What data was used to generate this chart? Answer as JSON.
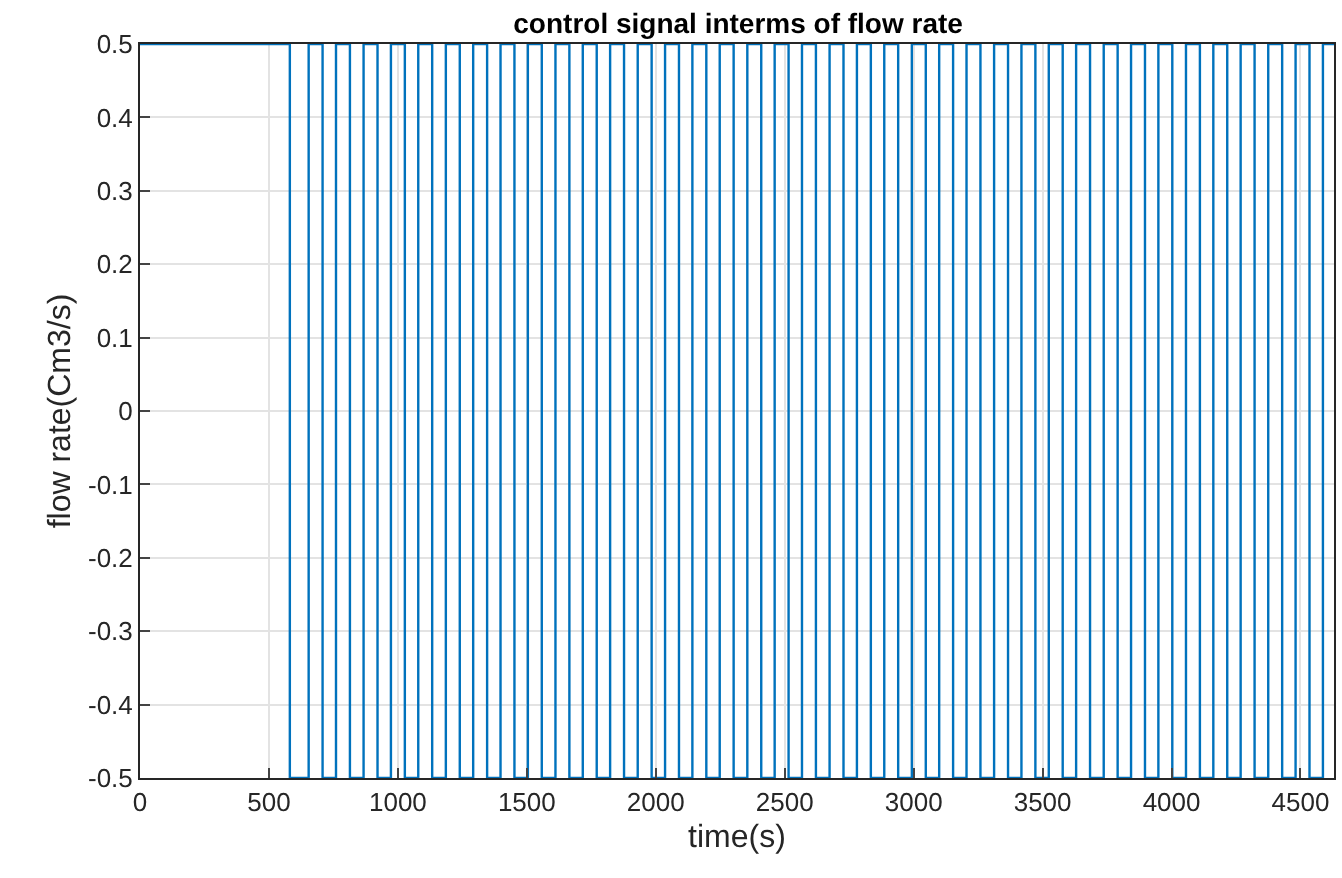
{
  "chart_data": {
    "type": "step",
    "title": "control signal interms of flow rate",
    "xlabel": "time(s)",
    "ylabel": "flow rate(Cm3/s)",
    "x": [
      0,
      581,
      654,
      708,
      760,
      814,
      867,
      921,
      973,
      1027,
      1079,
      1133,
      1186,
      1240,
      1292,
      1346,
      1398,
      1452,
      1504,
      1558,
      1611,
      1665,
      1717,
      1771,
      1823,
      1877,
      1930,
      1984,
      2036,
      2090,
      2142,
      2196,
      2248,
      2302,
      2355,
      2409,
      2461,
      2515,
      2567,
      2621,
      2674,
      2728,
      2780,
      2834,
      2886,
      2940,
      2993,
      3047,
      3099,
      3153,
      3205,
      3259,
      3312,
      3366,
      3418,
      3472,
      3524,
      3578,
      3630,
      3684,
      3737,
      3791,
      3843,
      3897,
      3949,
      4003,
      4056,
      4110,
      4162,
      4216,
      4268,
      4322,
      4375,
      4429,
      4481,
      4535,
      4587,
      4630
    ],
    "series": [
      {
        "color": "#0072bd",
        "values": [
          0.5,
          -0.5,
          0.5,
          -0.5,
          0.5,
          -0.5,
          0.5,
          -0.5,
          0.5,
          -0.5,
          0.5,
          -0.5,
          0.5,
          -0.5,
          0.5,
          -0.5,
          0.5,
          -0.5,
          0.5,
          -0.5,
          0.5,
          -0.5,
          0.5,
          -0.5,
          0.5,
          -0.5,
          0.5,
          -0.5,
          0.5,
          -0.5,
          0.5,
          -0.5,
          0.5,
          -0.5,
          0.5,
          -0.5,
          0.5,
          -0.5,
          0.5,
          -0.5,
          0.5,
          -0.5,
          0.5,
          -0.5,
          0.5,
          -0.5,
          0.5,
          -0.5,
          0.5,
          -0.5,
          0.5,
          -0.5,
          0.5,
          -0.5,
          0.5,
          -0.5,
          0.5,
          -0.5,
          0.5,
          -0.5,
          0.5,
          -0.5,
          0.5,
          -0.5,
          0.5,
          -0.5,
          0.5,
          -0.5,
          0.5,
          -0.5,
          0.5,
          -0.5,
          0.5,
          -0.5,
          0.5,
          -0.5,
          0.5,
          0.5
        ]
      }
    ],
    "xlim": [
      0,
      4630
    ],
    "xticks": [
      0,
      500,
      1000,
      1500,
      2000,
      2500,
      3000,
      3500,
      4000,
      4500
    ],
    "ylim": [
      -0.5,
      0.5
    ],
    "yticks": [
      -0.5,
      -0.4,
      -0.3,
      -0.2,
      -0.1,
      0,
      0.1,
      0.2,
      0.3,
      0.4,
      0.5
    ],
    "grid": true,
    "line_style": "solid"
  }
}
